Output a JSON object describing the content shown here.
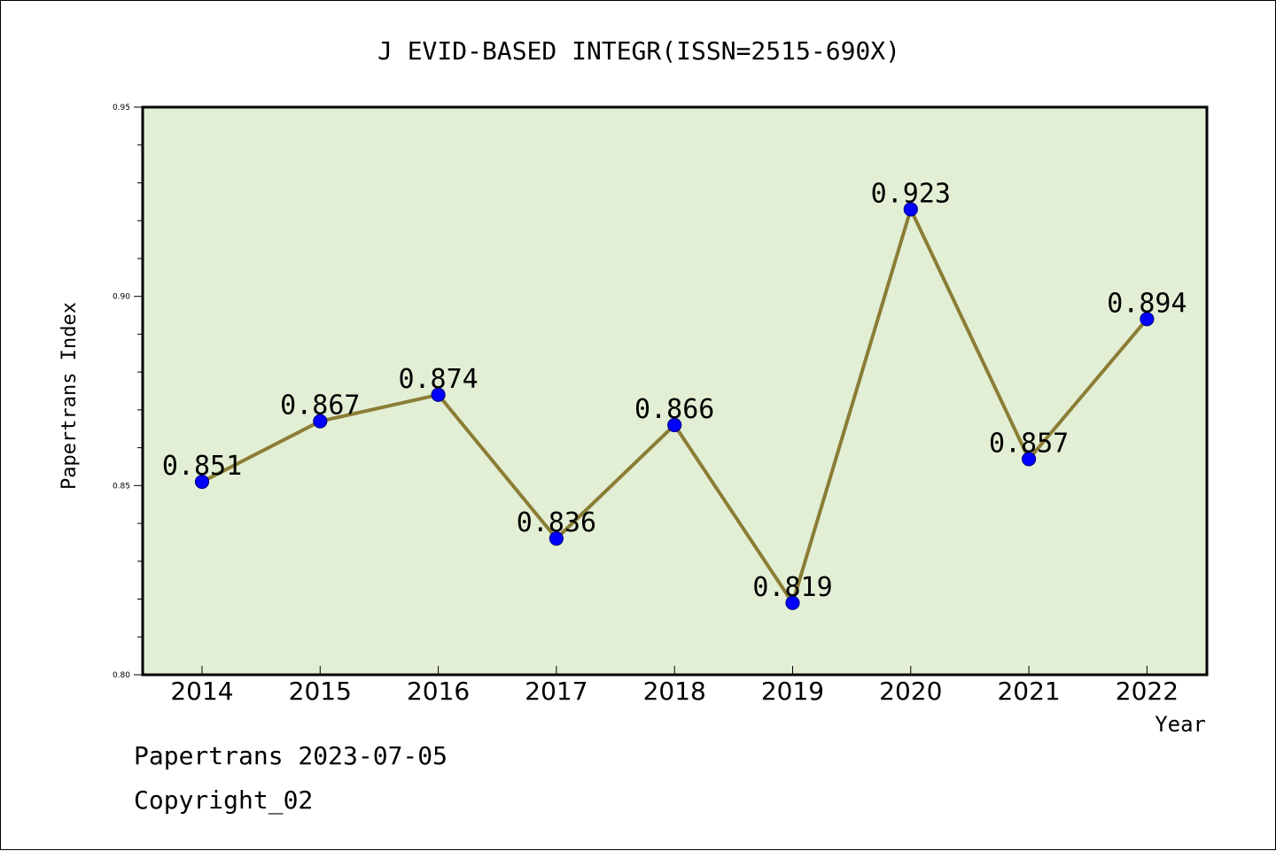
{
  "chart_data": {
    "type": "line",
    "title": "J EVID-BASED INTEGR(ISSN=2515-690X)",
    "xlabel": "Year",
    "ylabel": "Papertrans Index",
    "categories": [
      "2014",
      "2015",
      "2016",
      "2017",
      "2018",
      "2019",
      "2020",
      "2021",
      "2022"
    ],
    "values": [
      0.851,
      0.867,
      0.874,
      0.836,
      0.866,
      0.819,
      0.923,
      0.857,
      0.894
    ],
    "data_labels": [
      "0.851",
      "0.867",
      "0.874",
      "0.836",
      "0.866",
      "0.819",
      "0.923",
      "0.857",
      "0.894"
    ],
    "ylim": [
      0.8,
      0.95
    ],
    "y_ticks": [
      "0.80",
      "0.85",
      "0.90",
      "0.95"
    ],
    "grid": false,
    "colors": {
      "plot_background": "#e2efd5",
      "line": "#8b7d35",
      "marker": "#0000ff",
      "marker_edge": "#00008b"
    }
  },
  "footer": {
    "line1": "Papertrans 2023-07-05",
    "line2": "Copyright_02"
  }
}
